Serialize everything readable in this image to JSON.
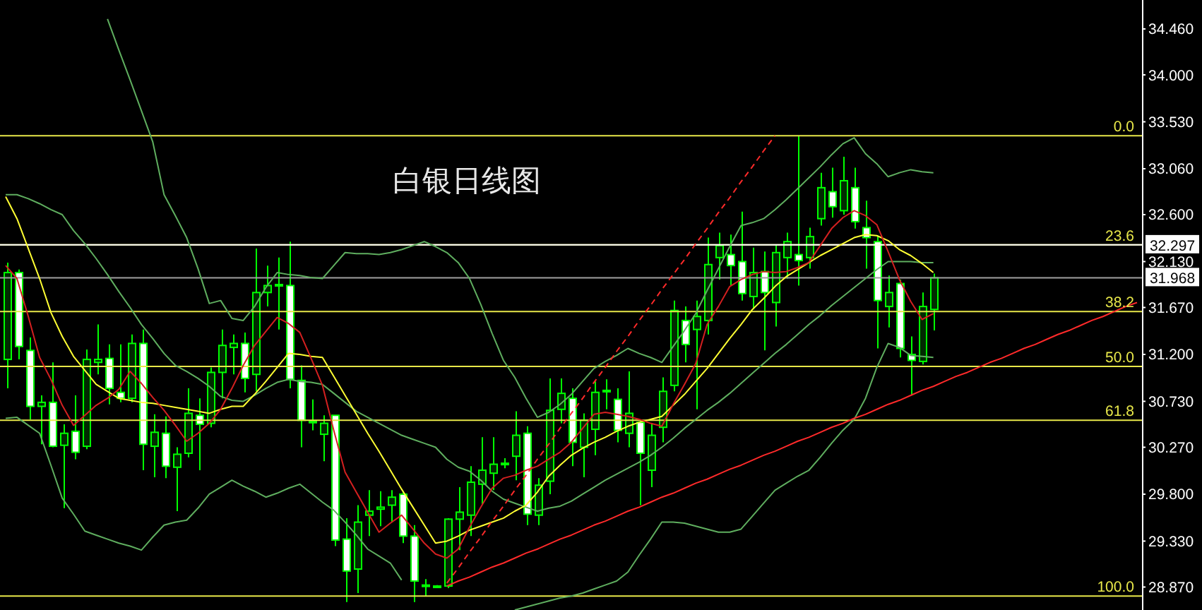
{
  "chart_data": {
    "type": "candlestick",
    "title": "白银日线图",
    "color": "#00ff00",
    "categories": [
      null,
      null,
      null,
      null,
      null,
      null,
      null,
      null,
      null,
      null,
      null,
      null,
      null,
      null,
      null,
      null,
      null,
      null,
      null,
      null,
      null,
      null,
      null,
      null,
      null,
      null,
      null,
      null,
      null,
      null,
      null,
      null,
      null,
      null,
      null,
      null,
      null,
      null,
      null,
      null,
      null,
      null,
      null,
      null,
      null,
      null,
      null,
      null,
      null,
      null,
      null,
      null,
      null,
      null,
      null,
      null,
      null,
      null,
      null,
      null,
      null,
      null,
      null,
      null,
      null,
      null,
      null,
      null,
      null,
      null,
      null,
      null,
      null,
      null,
      null,
      null,
      null,
      null,
      null,
      null,
      null,
      null,
      null,
      null,
      null,
      null,
      null,
      null,
      null,
      null,
      null,
      null,
      null,
      null,
      null,
      null,
      null,
      null,
      null,
      null,
      null
    ],
    "ohlc": [
      [
        31.15,
        32.12,
        30.86,
        32.02
      ],
      [
        32.02,
        32.05,
        31.15,
        31.28
      ],
      [
        31.24,
        31.37,
        30.55,
        30.68
      ],
      [
        30.68,
        30.79,
        30.3,
        30.72
      ],
      [
        30.72,
        31.12,
        30.27,
        30.28
      ],
      [
        30.29,
        30.5,
        29.66,
        30.41
      ],
      [
        30.43,
        30.79,
        30.15,
        30.22
      ],
      [
        30.28,
        31.25,
        30.25,
        31.15
      ],
      [
        31.12,
        31.5,
        31.0,
        31.15
      ],
      [
        31.16,
        31.3,
        30.7,
        30.86
      ],
      [
        30.82,
        31.3,
        30.72,
        30.76
      ],
      [
        30.76,
        31.4,
        30.72,
        31.31
      ],
      [
        31.31,
        31.45,
        30.04,
        30.3
      ],
      [
        30.28,
        30.6,
        29.97,
        30.42
      ],
      [
        30.41,
        30.58,
        29.96,
        30.08
      ],
      [
        30.07,
        30.27,
        29.63,
        30.2
      ],
      [
        30.21,
        30.86,
        30.17,
        30.61
      ],
      [
        30.59,
        30.76,
        30.04,
        30.5
      ],
      [
        30.51,
        31.07,
        30.47,
        31.02
      ],
      [
        31.02,
        31.45,
        30.76,
        31.29
      ],
      [
        31.27,
        31.4,
        31.0,
        31.31
      ],
      [
        31.31,
        31.42,
        30.82,
        30.96
      ],
      [
        31.0,
        32.26,
        30.83,
        31.82
      ],
      [
        31.82,
        32.09,
        31.68,
        31.89
      ],
      [
        31.89,
        32.17,
        31.45,
        31.9
      ],
      [
        31.89,
        32.33,
        30.86,
        30.95
      ],
      [
        30.94,
        31.09,
        30.27,
        30.54
      ],
      [
        30.53,
        30.75,
        30.44,
        30.52
      ],
      [
        30.4,
        30.59,
        30.13,
        30.51
      ],
      [
        30.59,
        30.59,
        29.28,
        29.34
      ],
      [
        29.35,
        29.56,
        28.72,
        29.03
      ],
      [
        29.05,
        29.69,
        28.81,
        29.52
      ],
      [
        29.59,
        29.84,
        29.38,
        29.63
      ],
      [
        29.65,
        29.83,
        29.48,
        29.67
      ],
      [
        29.69,
        29.84,
        29.52,
        29.77
      ],
      [
        29.8,
        29.83,
        29.31,
        29.38
      ],
      [
        29.38,
        29.49,
        28.72,
        28.93
      ],
      [
        28.88,
        28.95,
        28.78,
        28.89
      ],
      [
        28.88,
        28.89,
        28.87,
        28.88
      ],
      [
        28.88,
        29.56,
        28.86,
        29.55
      ],
      [
        29.55,
        29.87,
        29.24,
        29.62
      ],
      [
        29.59,
        30.08,
        29.38,
        29.92
      ],
      [
        29.9,
        30.37,
        29.7,
        30.04
      ],
      [
        30.01,
        30.37,
        29.84,
        30.1
      ],
      [
        30.11,
        30.16,
        30.06,
        30.11
      ],
      [
        30.18,
        30.63,
        29.94,
        30.39
      ],
      [
        30.41,
        30.48,
        29.49,
        29.6
      ],
      [
        29.59,
        29.96,
        29.49,
        29.89
      ],
      [
        29.93,
        30.96,
        29.8,
        30.64
      ],
      [
        30.65,
        30.96,
        30.51,
        30.81
      ],
      [
        30.76,
        30.86,
        30.08,
        30.32
      ],
      [
        30.27,
        30.61,
        29.97,
        30.54
      ],
      [
        30.45,
        30.93,
        30.19,
        30.82
      ],
      [
        30.83,
        30.95,
        30.65,
        30.84
      ],
      [
        30.75,
        30.86,
        30.32,
        30.44
      ],
      [
        30.41,
        31.03,
        30.27,
        30.61
      ],
      [
        30.52,
        30.55,
        29.69,
        30.21
      ],
      [
        30.04,
        30.51,
        29.87,
        30.39
      ],
      [
        30.47,
        30.97,
        30.32,
        30.83
      ],
      [
        30.89,
        31.74,
        30.83,
        31.64
      ],
      [
        31.54,
        31.68,
        31.12,
        31.3
      ],
      [
        31.45,
        31.74,
        30.65,
        31.58
      ],
      [
        31.54,
        32.37,
        31.4,
        32.1
      ],
      [
        32.17,
        32.42,
        31.95,
        32.29
      ],
      [
        32.2,
        32.4,
        31.89,
        32.09
      ],
      [
        32.13,
        32.63,
        31.74,
        31.81
      ],
      [
        31.78,
        32.27,
        31.65,
        32.02
      ],
      [
        32.03,
        32.23,
        31.24,
        31.82
      ],
      [
        31.72,
        32.3,
        31.48,
        32.22
      ],
      [
        32.17,
        32.42,
        31.96,
        32.33
      ],
      [
        32.2,
        33.39,
        31.89,
        32.14
      ],
      [
        32.17,
        32.47,
        32.06,
        32.38
      ],
      [
        32.56,
        33.02,
        32.49,
        32.87
      ],
      [
        32.83,
        33.07,
        32.57,
        32.68
      ],
      [
        32.64,
        33.18,
        32.6,
        32.94
      ],
      [
        32.87,
        33.07,
        32.46,
        32.53
      ],
      [
        32.47,
        32.74,
        32.06,
        32.37
      ],
      [
        32.33,
        32.39,
        31.26,
        31.74
      ],
      [
        31.68,
        31.99,
        31.47,
        31.82
      ],
      [
        31.91,
        31.95,
        31.17,
        31.26
      ],
      [
        31.2,
        31.38,
        30.79,
        31.14
      ],
      [
        31.13,
        31.82,
        31.1,
        31.68
      ],
      [
        31.65,
        32.01,
        31.44,
        31.968
      ],
      null,
      null,
      null,
      null,
      null,
      null,
      null,
      null,
      null,
      null,
      null,
      null,
      null,
      null,
      null,
      null,
      null,
      null
    ],
    "series": [
      {
        "type": "line",
        "color": "#5fae5f",
        "values": [
          null,
          null,
          null,
          null,
          null,
          null,
          null,
          null,
          null,
          34.56,
          34.25,
          33.95,
          33.64,
          33.33,
          32.8,
          32.59,
          32.37,
          32.06,
          31.71,
          31.74,
          31.56,
          31.54,
          31.68,
          31.87,
          32.02,
          32.0,
          31.99,
          31.97,
          31.96,
          32.09,
          32.22,
          32.21,
          32.21,
          32.2,
          32.22,
          32.25,
          32.29,
          32.33,
          32.28,
          32.22,
          32.12,
          31.96,
          31.7,
          31.41,
          31.14,
          30.97,
          30.76,
          30.57,
          30.62,
          30.7,
          30.8,
          30.93,
          31.06,
          31.13,
          31.19,
          31.26,
          31.21,
          31.17,
          31.12,
          31.28,
          31.44,
          31.61,
          31.84,
          32.06,
          32.28,
          32.49,
          32.52,
          32.56,
          32.65,
          32.75,
          32.86,
          32.97,
          33.08,
          33.2,
          33.31,
          33.37,
          33.21,
          33.11,
          32.98,
          33.02,
          33.05,
          33.03,
          33.02,
          null,
          null,
          null,
          null,
          null,
          null,
          null,
          null,
          null,
          null,
          null,
          null,
          null,
          null,
          null,
          null,
          null,
          null
        ]
      },
      {
        "type": "line",
        "color": "#5fae5f",
        "values": [
          32.8,
          32.8,
          32.76,
          32.71,
          32.65,
          32.6,
          32.44,
          32.31,
          32.16,
          32.0,
          31.83,
          31.67,
          31.5,
          31.36,
          31.21,
          31.09,
          31.03,
          30.96,
          30.88,
          30.78,
          30.74,
          30.73,
          30.79,
          30.86,
          30.92,
          30.95,
          30.93,
          30.92,
          30.9,
          30.81,
          30.72,
          30.63,
          30.57,
          30.51,
          30.45,
          30.39,
          30.35,
          30.31,
          30.27,
          30.15,
          30.07,
          30.03,
          29.94,
          29.83,
          29.75,
          29.71,
          29.67,
          29.63,
          29.66,
          29.68,
          29.73,
          29.8,
          29.87,
          29.94,
          30.0,
          30.06,
          30.12,
          30.19,
          30.27,
          30.36,
          30.46,
          30.55,
          30.64,
          30.72,
          30.81,
          30.91,
          31.01,
          31.11,
          31.21,
          31.3,
          31.4,
          31.5,
          31.59,
          31.69,
          31.78,
          31.87,
          31.96,
          32.05,
          32.13,
          32.13,
          32.13,
          32.12,
          32.12,
          null,
          null,
          null,
          null,
          null,
          null,
          null,
          null,
          null,
          null,
          null,
          null,
          null,
          null,
          null,
          null,
          null,
          null
        ]
      },
      {
        "type": "line",
        "color": "#5fae5f",
        "values": [
          30.56,
          30.57,
          30.49,
          30.41,
          30.09,
          29.76,
          29.6,
          29.43,
          29.39,
          29.35,
          29.31,
          29.28,
          29.24,
          29.37,
          29.49,
          29.52,
          29.54,
          29.66,
          29.8,
          29.87,
          29.94,
          29.88,
          29.83,
          29.77,
          29.81,
          29.86,
          29.9,
          29.81,
          29.72,
          29.64,
          29.52,
          29.39,
          29.25,
          29.18,
          29.11,
          28.94,
          null,
          null,
          null,
          null,
          null,
          null,
          null,
          null,
          null,
          28.64,
          28.67,
          28.7,
          28.73,
          28.76,
          28.78,
          28.81,
          28.85,
          28.89,
          28.93,
          29.02,
          29.19,
          29.35,
          29.52,
          29.52,
          29.51,
          29.48,
          29.45,
          29.42,
          29.42,
          29.45,
          29.58,
          29.71,
          29.84,
          29.91,
          29.98,
          30.04,
          30.17,
          30.31,
          30.44,
          30.55,
          30.76,
          31.07,
          31.31,
          31.27,
          31.19,
          31.18,
          31.17,
          null,
          null,
          null,
          null,
          null,
          null,
          null,
          null,
          null,
          null,
          null,
          null,
          null,
          null,
          null,
          null,
          null,
          null
        ]
      },
      {
        "type": "line",
        "color": "#ffff33",
        "values": [
          32.78,
          32.56,
          32.26,
          31.96,
          31.62,
          31.38,
          31.18,
          31.04,
          30.9,
          30.83,
          30.76,
          30.74,
          30.72,
          30.71,
          30.69,
          30.67,
          30.65,
          30.63,
          30.61,
          30.65,
          30.68,
          30.68,
          30.8,
          30.93,
          31.07,
          31.21,
          31.2,
          31.18,
          31.17,
          30.98,
          30.79,
          30.6,
          30.41,
          30.23,
          30.04,
          29.85,
          29.67,
          29.49,
          29.31,
          29.33,
          29.38,
          29.44,
          29.48,
          29.52,
          29.56,
          29.63,
          29.69,
          29.82,
          29.98,
          30.09,
          30.19,
          30.26,
          30.32,
          30.37,
          30.43,
          30.48,
          30.52,
          30.55,
          30.58,
          30.69,
          30.8,
          30.93,
          31.06,
          31.21,
          31.36,
          31.5,
          31.65,
          31.76,
          31.88,
          31.98,
          32.05,
          32.12,
          32.19,
          32.25,
          32.31,
          32.37,
          32.4,
          32.39,
          32.34,
          32.25,
          32.19,
          32.11,
          32.02,
          null,
          null,
          null,
          null,
          null,
          null,
          null,
          null,
          null,
          null,
          null,
          null,
          null,
          null,
          null,
          null,
          null,
          null
        ]
      },
      {
        "type": "line",
        "color": "#d42020",
        "values": [
          32.09,
          31.96,
          31.58,
          31.17,
          30.95,
          30.69,
          30.49,
          30.59,
          30.69,
          30.76,
          30.85,
          31.03,
          30.91,
          30.77,
          30.64,
          30.49,
          30.33,
          30.41,
          30.51,
          30.65,
          30.86,
          31.09,
          31.29,
          31.43,
          31.57,
          31.51,
          31.42,
          31.16,
          30.89,
          30.44,
          30.02,
          29.82,
          29.62,
          29.42,
          29.51,
          29.59,
          29.45,
          29.31,
          29.2,
          29.16,
          29.25,
          29.47,
          29.67,
          29.86,
          29.96,
          29.99,
          30.04,
          30.08,
          30.15,
          30.22,
          30.32,
          30.46,
          30.6,
          30.62,
          30.6,
          30.58,
          30.55,
          30.51,
          30.48,
          30.7,
          30.9,
          31.11,
          31.5,
          31.68,
          31.88,
          31.95,
          32.0,
          32.03,
          32.02,
          32.03,
          32.07,
          32.12,
          32.29,
          32.46,
          32.57,
          32.64,
          32.59,
          32.5,
          32.23,
          31.95,
          31.73,
          31.55,
          31.61,
          null,
          null,
          null,
          null,
          null,
          null,
          null,
          null,
          null,
          null,
          null,
          null,
          null,
          null,
          null,
          null,
          null,
          null
        ]
      },
      {
        "type": "line",
        "color": "#ff2a2a",
        "values": [
          null,
          null,
          null,
          null,
          null,
          null,
          null,
          null,
          null,
          null,
          null,
          null,
          null,
          null,
          null,
          null,
          null,
          null,
          null,
          null,
          null,
          null,
          null,
          null,
          null,
          null,
          null,
          null,
          null,
          null,
          null,
          null,
          null,
          null,
          null,
          null,
          null,
          null,
          null,
          28.88,
          28.93,
          28.97,
          29.02,
          29.07,
          29.11,
          29.16,
          29.21,
          29.25,
          29.3,
          29.35,
          29.39,
          29.44,
          29.49,
          29.53,
          29.58,
          29.63,
          29.67,
          29.72,
          29.77,
          29.81,
          29.86,
          29.91,
          29.95,
          30.0,
          30.05,
          30.09,
          30.14,
          30.19,
          30.23,
          30.28,
          30.33,
          30.37,
          30.42,
          30.47,
          30.51,
          30.56,
          30.6,
          30.65,
          30.7,
          30.74,
          30.79,
          30.84,
          30.88,
          30.93,
          30.98,
          31.02,
          31.07,
          31.12,
          31.16,
          31.21,
          31.26,
          31.3,
          31.35,
          31.4,
          31.44,
          31.49,
          31.54,
          31.58,
          31.63,
          31.68,
          31.72
        ]
      },
      {
        "type": "line",
        "color": "#ff2a2a",
        "line_style": "dashed",
        "values": [
          null,
          null,
          null,
          null,
          null,
          null,
          null,
          null,
          null,
          null,
          null,
          null,
          null,
          null,
          null,
          null,
          null,
          null,
          null,
          null,
          null,
          null,
          null,
          null,
          null,
          null,
          null,
          null,
          null,
          null,
          null,
          null,
          null,
          null,
          null,
          null,
          null,
          null,
          null,
          28.91,
          29.06,
          29.22,
          29.37,
          29.53,
          29.68,
          29.84,
          29.99,
          30.15,
          30.3,
          30.46,
          30.61,
          30.76,
          30.92,
          31.07,
          31.23,
          31.38,
          31.54,
          31.69,
          31.85,
          32.0,
          32.15,
          32.31,
          32.46,
          32.62,
          32.77,
          32.93,
          33.08,
          33.24,
          33.39,
          null,
          null,
          null,
          null,
          null,
          null,
          null,
          null,
          null,
          null,
          null,
          null,
          null,
          null,
          null,
          null,
          null,
          null,
          null,
          null,
          null,
          null,
          null,
          null,
          null,
          null,
          null,
          null,
          null,
          null,
          null,
          null
        ]
      }
    ],
    "ylim": [
      28.64,
      34.75
    ],
    "yticks": [
      {
        "value": 28.87,
        "label": "28.870"
      },
      {
        "value": 29.33,
        "label": "29.330"
      },
      {
        "value": 29.8,
        "label": "29.800"
      },
      {
        "value": 30.27,
        "label": "30.270"
      },
      {
        "value": 30.73,
        "label": "30.730"
      },
      {
        "value": 31.2,
        "label": "31.200"
      },
      {
        "value": 31.67,
        "label": "31.670"
      },
      {
        "value": 32.13,
        "label": "32.130"
      },
      {
        "value": 32.6,
        "label": "32.600"
      },
      {
        "value": 33.06,
        "label": "33.060"
      },
      {
        "value": 33.53,
        "label": "33.530"
      },
      {
        "value": 34,
        "label": "34.000"
      },
      {
        "value": 34.46,
        "label": "34.460"
      }
    ],
    "tick_labels": "y",
    "annotations": [
      {
        "text": "0.0",
        "y": 33.39
      },
      {
        "text": "23.6",
        "y": 32.297
      },
      {
        "text": "38.2",
        "y": 31.63
      },
      {
        "text": "50.0",
        "y": 31.08
      },
      {
        "text": "61.8",
        "y": 30.54
      },
      {
        "text": "100.0",
        "y": 28.78
      }
    ],
    "ref_lines": [
      {
        "axis": "y",
        "value": 33.39,
        "color": "#e8e84a"
      },
      {
        "axis": "y",
        "value": 32.297,
        "color": "#e8e84a"
      },
      {
        "axis": "y",
        "value": 31.63,
        "color": "#e8e84a"
      },
      {
        "axis": "y",
        "value": 31.08,
        "color": "#e8e84a"
      },
      {
        "axis": "y",
        "value": 30.54,
        "color": "#e8e84a"
      },
      {
        "axis": "y",
        "value": 28.78,
        "color": "#e8e84a"
      },
      {
        "axis": "y",
        "value": 32.297,
        "label": "32.297",
        "color": "#ffffff"
      },
      {
        "axis": "y",
        "value": 31.968,
        "label": "31.968",
        "color": "#a0a0a0"
      }
    ]
  }
}
